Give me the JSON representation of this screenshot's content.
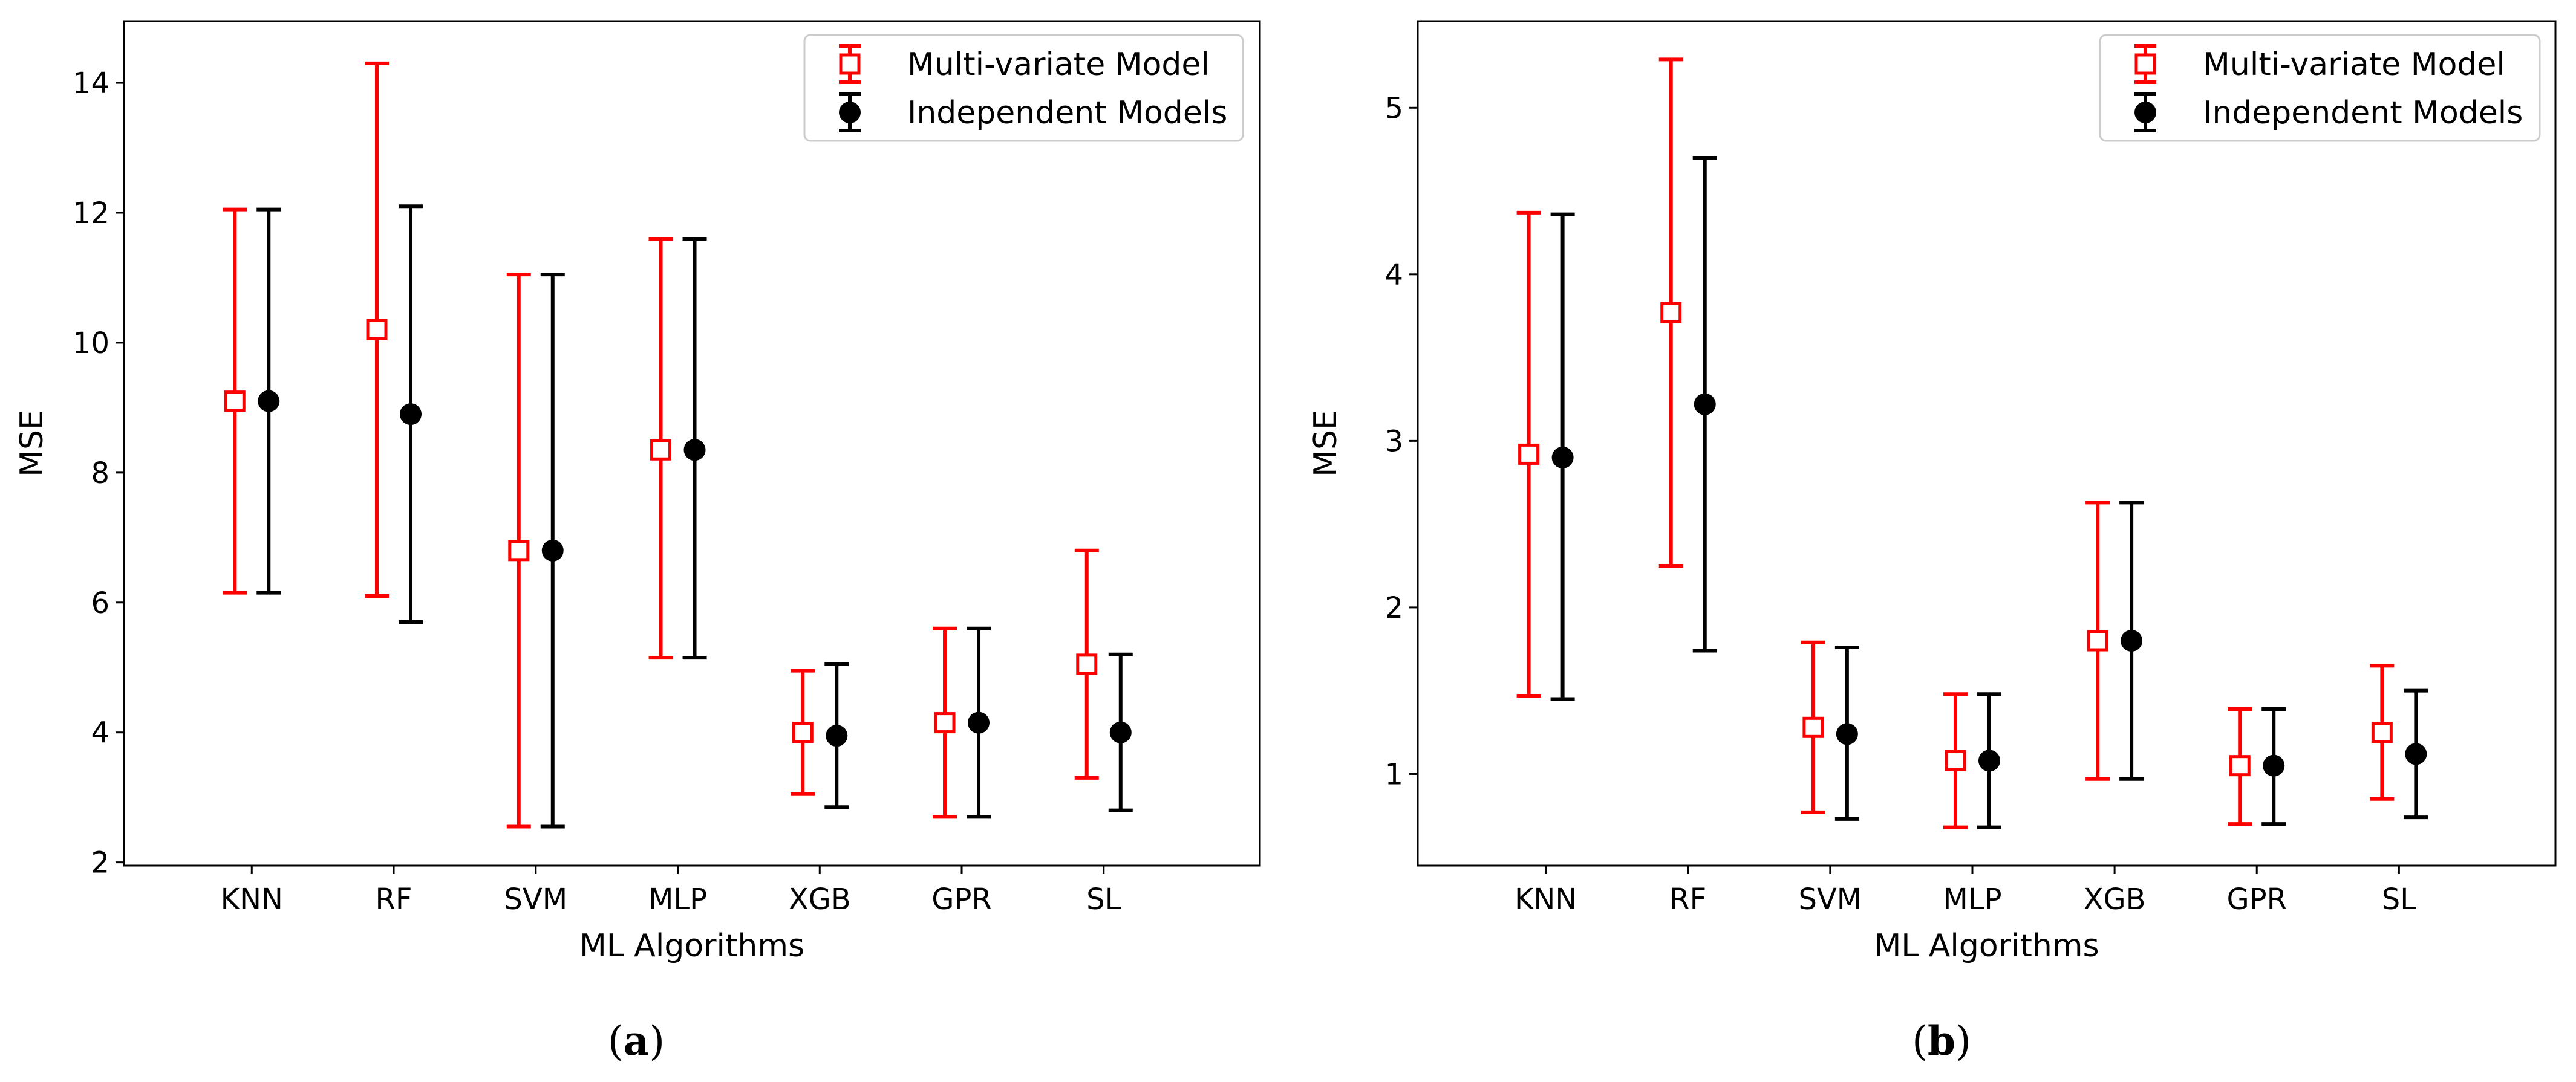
{
  "chart_data": [
    {
      "id": "a",
      "type": "errorbar",
      "caption_open": "(",
      "caption_letter": "a",
      "caption_close": ")",
      "xlabel": "ML Algorithms",
      "ylabel": "MSE",
      "categories": [
        "KNN",
        "RF",
        "SVM",
        "MLP",
        "XGB",
        "GPR",
        "SL"
      ],
      "ylim": [
        1.95,
        14.95
      ],
      "yticks": [
        2,
        4,
        6,
        8,
        10,
        12,
        14
      ],
      "legend_position": "top-right",
      "series": [
        {
          "name": "Multi-variate Model",
          "color": "#ff0000",
          "marker": "open-square",
          "values": [
            9.1,
            10.2,
            6.8,
            8.35,
            4.0,
            4.15,
            5.05
          ],
          "lower": [
            6.15,
            6.1,
            2.55,
            5.15,
            3.05,
            2.7,
            3.3
          ],
          "upper": [
            12.05,
            14.3,
            11.05,
            11.6,
            4.95,
            5.6,
            6.8
          ]
        },
        {
          "name": "Independent Models",
          "color": "#000000",
          "marker": "filled-circle",
          "values": [
            9.1,
            8.9,
            6.8,
            8.35,
            3.95,
            4.15,
            4.0
          ],
          "lower": [
            6.15,
            5.7,
            2.55,
            5.15,
            2.85,
            2.7,
            2.8
          ],
          "upper": [
            12.05,
            12.1,
            11.05,
            11.6,
            5.05,
            5.6,
            5.2
          ]
        }
      ]
    },
    {
      "id": "b",
      "type": "errorbar",
      "caption_open": "(",
      "caption_letter": "b",
      "caption_close": ")",
      "xlabel": "ML Algorithms",
      "ylabel": "MSE",
      "categories": [
        "KNN",
        "RF",
        "SVM",
        "MLP",
        "XGB",
        "GPR",
        "SL"
      ],
      "ylim": [
        0.45,
        5.52
      ],
      "yticks": [
        1,
        2,
        3,
        4,
        5
      ],
      "legend_position": "top-right",
      "series": [
        {
          "name": "Multi-variate Model",
          "color": "#ff0000",
          "marker": "open-square",
          "values": [
            2.92,
            3.77,
            1.28,
            1.08,
            1.8,
            1.05,
            1.25
          ],
          "lower": [
            1.47,
            2.25,
            0.77,
            0.68,
            0.97,
            0.7,
            0.85
          ],
          "upper": [
            4.37,
            5.29,
            1.79,
            1.48,
            2.63,
            1.39,
            1.65
          ]
        },
        {
          "name": "Independent Models",
          "color": "#000000",
          "marker": "filled-circle",
          "values": [
            2.9,
            3.22,
            1.24,
            1.08,
            1.8,
            1.05,
            1.12
          ],
          "lower": [
            1.45,
            1.74,
            0.73,
            0.68,
            0.97,
            0.7,
            0.74
          ],
          "upper": [
            4.36,
            4.7,
            1.76,
            1.48,
            2.63,
            1.39,
            1.5
          ]
        }
      ]
    }
  ]
}
